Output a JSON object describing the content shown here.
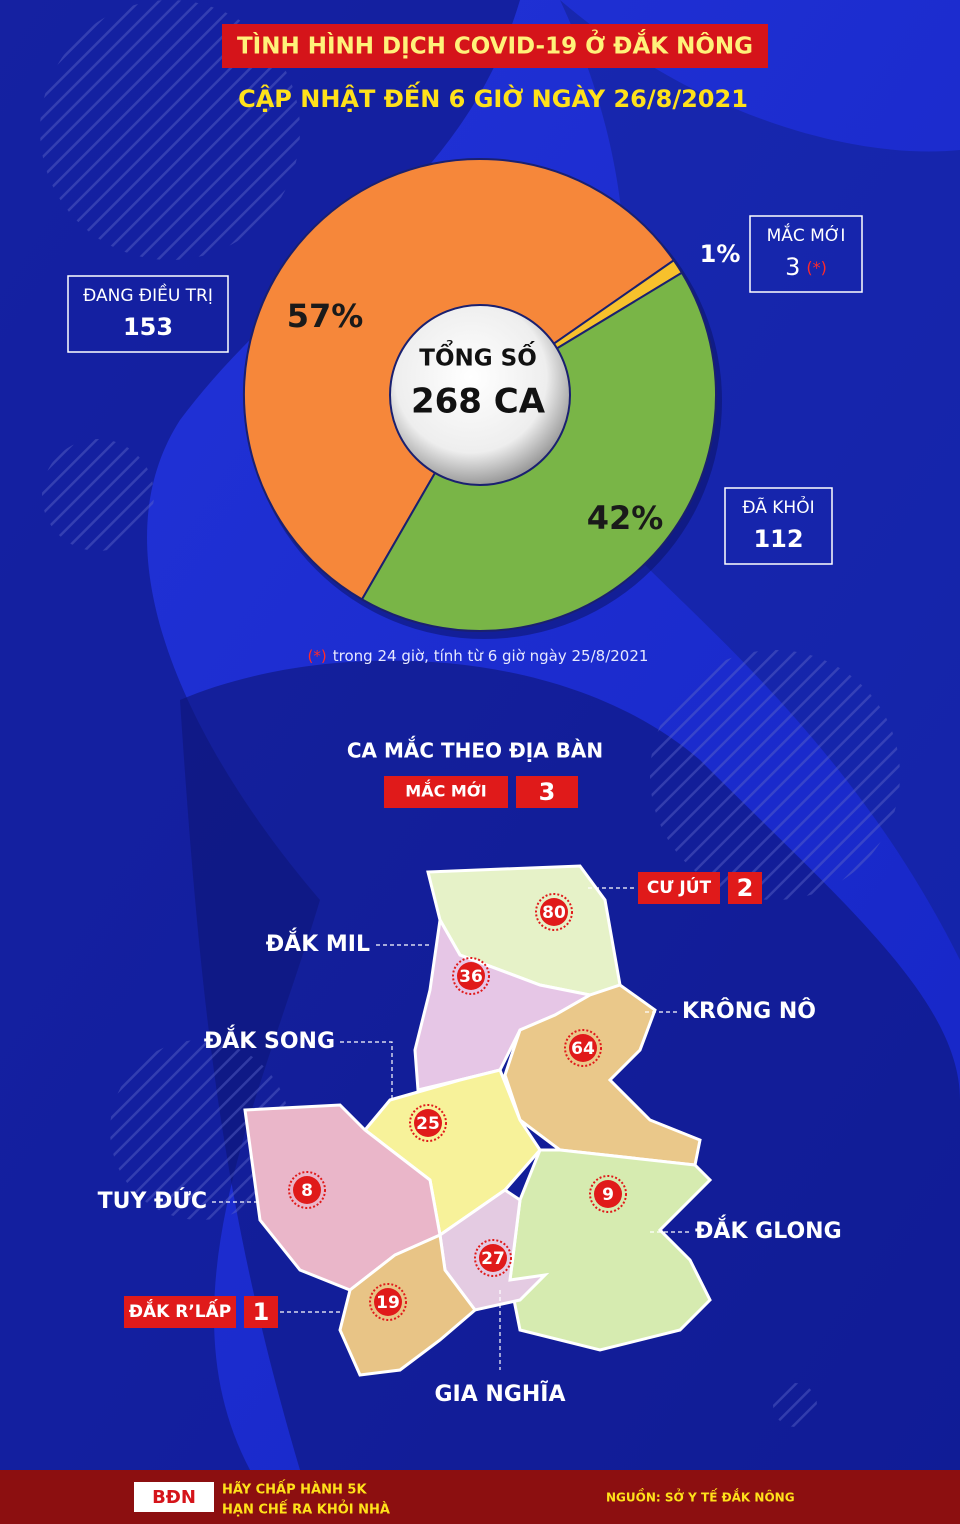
{
  "header": {
    "title": "TÌNH HÌNH DỊCH COVID-19 Ở ĐẮK NÔNG",
    "subtitle": "CẬP NHẬT ĐẾN 6 GIỜ NGÀY 26/8/2021"
  },
  "chart_data": {
    "type": "pie",
    "categories": [
      "ĐANG ĐIỀU TRỊ",
      "MẮC MỚI",
      "ĐÃ KHỎI"
    ],
    "values": [
      57,
      1,
      42
    ],
    "value_labels": [
      "57%",
      "1%",
      "42%"
    ],
    "colors": [
      "#f6873a",
      "#f7c12c",
      "#79b547"
    ],
    "counts": [
      153,
      3,
      112
    ],
    "center_label": "TỔNG SỐ",
    "center_value": "268 CA",
    "footnote_mark": "(*)",
    "footnote": "trong 24 giờ, tính từ 6 giờ ngày 25/8/2021"
  },
  "map": {
    "title": "CA MẮC THEO ĐỊA BÀN",
    "new_label": "MẮC MỚI",
    "new_total": 3,
    "districts": [
      {
        "name": "CƯ JÚT",
        "cases": 80,
        "new": 2
      },
      {
        "name": "ĐẮK MIL",
        "cases": 36
      },
      {
        "name": "KRÔNG NÔ",
        "cases": 64
      },
      {
        "name": "ĐẮK SONG",
        "cases": 25
      },
      {
        "name": "TUY ĐỨC",
        "cases": 8
      },
      {
        "name": "ĐẮK GLONG",
        "cases": 9
      },
      {
        "name": "GIA NGHĨA",
        "cases": 27
      },
      {
        "name": "ĐẮK R’LẤP",
        "cases": 19,
        "new": 1
      }
    ]
  },
  "footer": {
    "logo": "BĐN",
    "slogan": [
      "HÃY CHẤP HÀNH 5K",
      "HẠN CHẾ RA KHỎI NHÀ"
    ],
    "source": "NGUỒN: SỞ Y TẾ ĐẮK NÔNG"
  }
}
